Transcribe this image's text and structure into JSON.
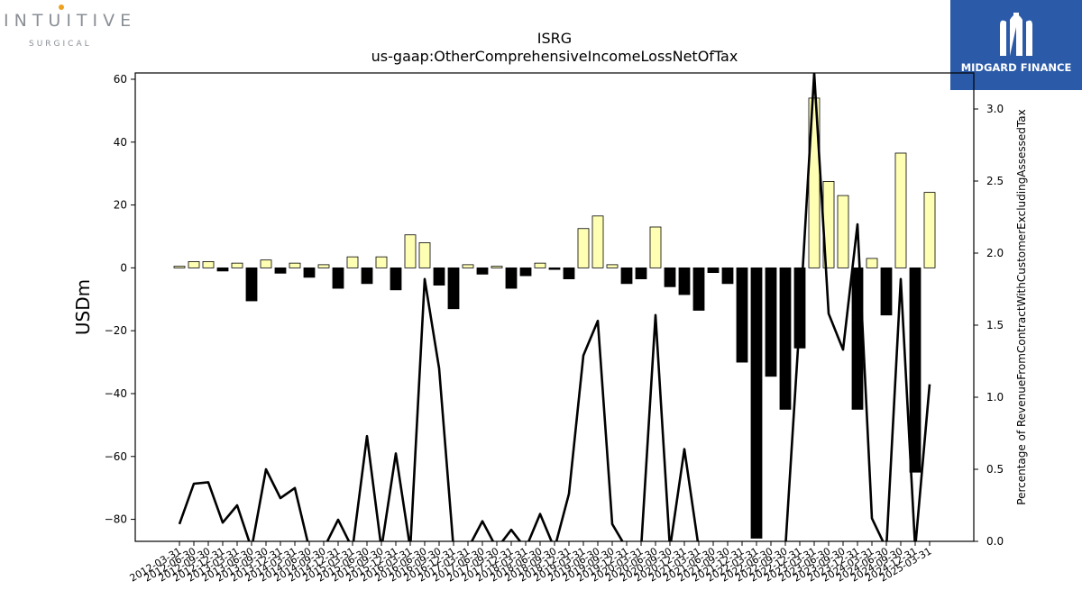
{
  "logo": {
    "name": "INTUITIVE",
    "sub": "SURGICAL"
  },
  "badge": {
    "label": "MIDGARD FINANCE",
    "color": "#2b5ba8"
  },
  "chart_data": {
    "type": "bar",
    "title": "ISRG",
    "subtitle": "us-gaap:OtherComprehensiveIncomeLossNetOfTax",
    "ylabel": "USDm",
    "y2label": "Percentage of RevenueFromContractWithCustomerExcludingAssessedTax",
    "ylim": [
      -87,
      62
    ],
    "y2lim": [
      0,
      3.25
    ],
    "yticks": [
      "60",
      "40",
      "20",
      "0",
      "−20",
      "−40",
      "−60",
      "−80"
    ],
    "y2ticks": [
      "0.0",
      "0.5",
      "1.0",
      "1.5",
      "2.0",
      "2.5",
      "3.0"
    ],
    "grid": false,
    "colors": {
      "positive": "#ffffb3",
      "negative": "#000000",
      "line": "#000000"
    },
    "categories": [
      "2012-03-31",
      "2012-06-30",
      "2012-09-30",
      "2012-12-31",
      "2013-03-31",
      "2013-06-30",
      "2013-09-30",
      "2013-12-31",
      "2014-03-31",
      "2014-06-30",
      "2014-09-30",
      "2014-12-31",
      "2015-03-31",
      "2015-06-30",
      "2015-09-30",
      "2015-12-31",
      "2016-03-31",
      "2016-06-30",
      "2016-09-30",
      "2016-12-31",
      "2017-03-31",
      "2017-06-30",
      "2017-09-30",
      "2017-12-31",
      "2018-03-31",
      "2018-06-30",
      "2018-09-30",
      "2018-12-31",
      "2019-03-31",
      "2019-06-30",
      "2019-09-30",
      "2019-12-31",
      "2020-03-31",
      "2020-06-30",
      "2020-09-30",
      "2020-12-31",
      "2021-03-31",
      "2021-06-30",
      "2021-09-30",
      "2021-12-31",
      "2022-03-31",
      "2022-06-30",
      "2022-09-30",
      "2022-12-31",
      "2023-03-31",
      "2023-06-30",
      "2023-09-30",
      "2023-12-31",
      "2024-03-31",
      "2024-06-30",
      "2024-09-30",
      "2024-12-31",
      "2025-03-31"
    ],
    "series": [
      {
        "type": "bar",
        "values": [
          0.5,
          2,
          2,
          -1,
          1.5,
          -10.5,
          2.5,
          -1.7,
          1.5,
          -3,
          1,
          -6.5,
          3.5,
          -5,
          3.5,
          -7,
          10.5,
          8,
          -5.5,
          -13,
          1,
          -2,
          0.5,
          -6.5,
          -2.5,
          1.5,
          -0.5,
          -3.5,
          12.5,
          16.5,
          1,
          -5,
          -3.5,
          13,
          -6,
          -8.5,
          -13.5,
          -1.5,
          -5,
          -30,
          -86,
          -34.5,
          -45,
          -25.5,
          54,
          27.5,
          23,
          -45,
          3,
          -15,
          36.5,
          -65,
          24
        ]
      },
      {
        "type": "line",
        "values": [
          0.12,
          0.4,
          0.41,
          0.13,
          0.25,
          -0.05,
          0.5,
          0.3,
          0.37,
          -0.05,
          -0.05,
          0.15,
          -0.05,
          0.73,
          -0.05,
          0.61,
          -0.05,
          1.82,
          1.2,
          -0.05,
          -0.05,
          0.14,
          -0.05,
          0.08,
          -0.05,
          0.19,
          -0.05,
          0.33,
          1.29,
          1.53,
          0.12,
          -0.05,
          -0.05,
          1.57,
          -0.05,
          0.64,
          -0.05,
          -0.05,
          -0.05,
          -0.05,
          -0.05,
          -0.05,
          -0.05,
          1.54,
          3.25,
          1.58,
          1.33,
          2.2,
          0.16,
          -0.05,
          1.82,
          -0.05,
          1.09
        ]
      }
    ]
  }
}
